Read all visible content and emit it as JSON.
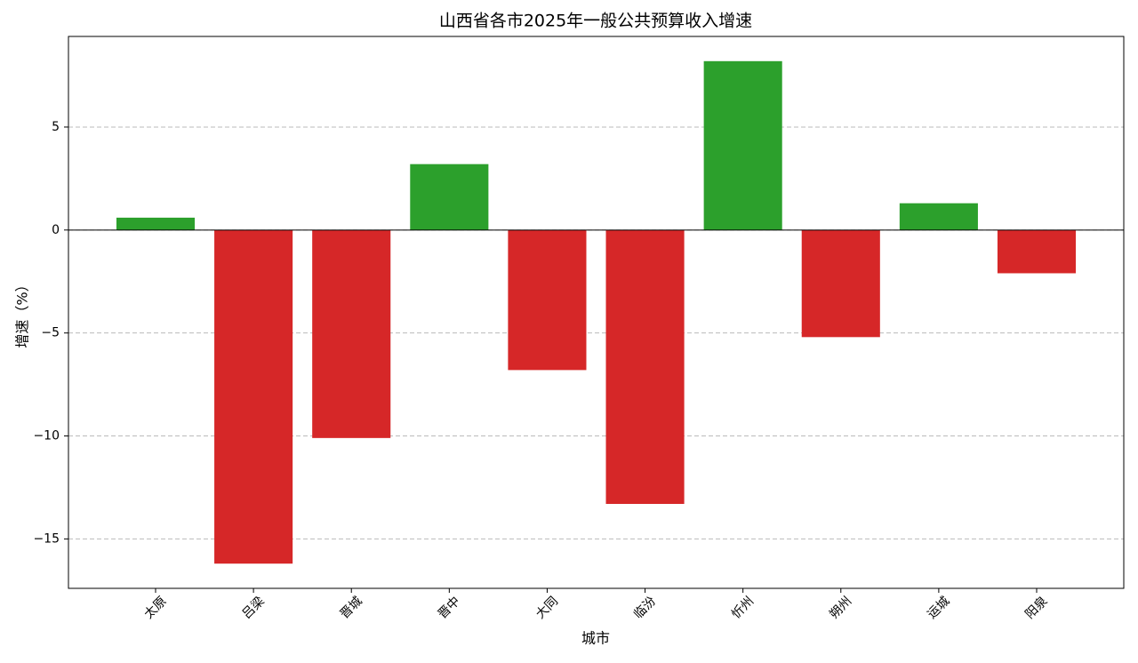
{
  "chart_data": {
    "type": "bar",
    "title": "山西省各市2025年一般公共预算收入增速",
    "x_label": "城市",
    "y_label": "增速（%）",
    "categories": [
      "太原",
      "吕梁",
      "晋城",
      "晋中",
      "大同",
      "临汾",
      "忻州",
      "朔州",
      "运城",
      "阳泉"
    ],
    "values": [
      0.6,
      -16.2,
      -10.1,
      3.2,
      -6.8,
      -13.3,
      8.2,
      -5.2,
      1.3,
      -2.1
    ],
    "colors": [
      "#2ca02c",
      "#d62728",
      "#d62728",
      "#2ca02c",
      "#d62728",
      "#d62728",
      "#2ca02c",
      "#d62728",
      "#2ca02c",
      "#d62728"
    ],
    "ylim": [
      -17.4,
      9.4
    ],
    "yticks": [
      {
        "value": -15,
        "label": "−15"
      },
      {
        "value": -10,
        "label": "−10"
      },
      {
        "value": -5,
        "label": "−5"
      },
      0,
      5
    ],
    "grid": true
  }
}
